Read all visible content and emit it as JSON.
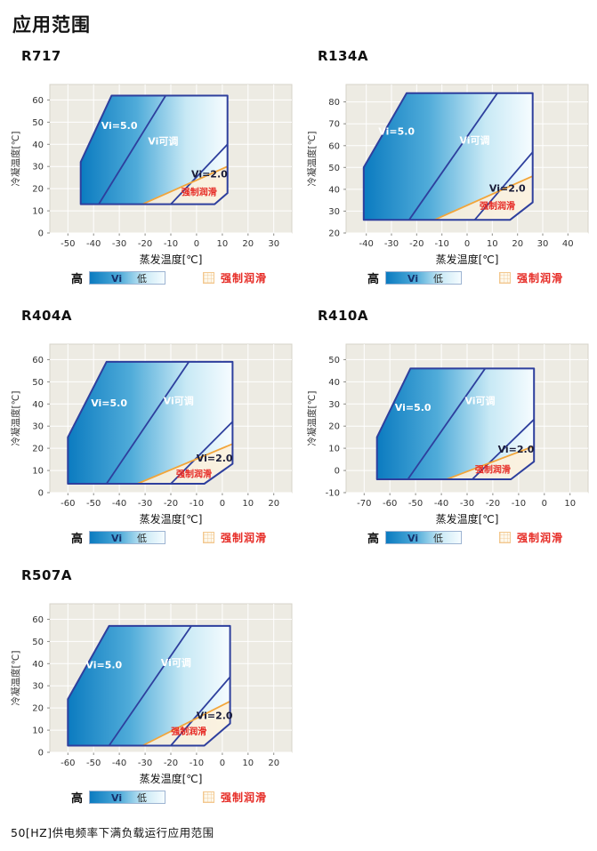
{
  "page": {
    "title": "应用范围",
    "footnote": "50[HZ]供电频率下满负载运行应用范围"
  },
  "legend": {
    "high": "高",
    "vi": "Vi",
    "low": "低",
    "forced_lube": "强制润滑"
  },
  "colors": {
    "plot_bg": "#edebe3",
    "plot_border": "#d6d3c8",
    "grid": "#ffffff",
    "navy": "#2e3f9d",
    "grad_start": "#0b7bc0",
    "grad_mid": "#4fabd9",
    "grad_light": "#c8e9f5",
    "grad_end": "#f6fcff",
    "orange": "#f2a53a",
    "lube_fill": "#fcf1dd",
    "red": "#e62a24",
    "label_dark": "#1a1c38",
    "axis_text": "#333333"
  },
  "chart_data": [
    {
      "type": "area",
      "title": "R717",
      "xlabel": "蒸发温度[℃]",
      "ylabel": "冷凝温度[℃]",
      "xticks": [
        -50,
        -40,
        -30,
        -20,
        -10,
        0,
        10,
        20,
        30
      ],
      "yticks": [
        0,
        10,
        20,
        30,
        40,
        50,
        60
      ],
      "xlim": [
        -57,
        37
      ],
      "ylim": [
        0,
        67
      ],
      "envelope": [
        [
          -45,
          13
        ],
        [
          -45,
          32
        ],
        [
          -33,
          62
        ],
        [
          12,
          62
        ],
        [
          12,
          18
        ],
        [
          7,
          13
        ]
      ],
      "vi5_line": [
        [
          -38,
          13
        ],
        [
          -12,
          62
        ]
      ],
      "vi2_line": [
        [
          -10,
          13
        ],
        [
          12,
          40
        ]
      ],
      "forced_lube_line": [
        [
          -21,
          13
        ],
        [
          12,
          30
        ]
      ],
      "forced_lube_region": [
        [
          -21,
          13
        ],
        [
          12,
          30
        ],
        [
          12,
          18
        ],
        [
          7,
          13
        ]
      ],
      "labels": [
        {
          "text": "Vi=5.0",
          "x": -30,
          "y": 47,
          "style": "white"
        },
        {
          "text": "Vi可调",
          "x": -13,
          "y": 40,
          "style": "white"
        },
        {
          "text": "Vi=2.0",
          "x": 5,
          "y": 25,
          "style": "dark"
        },
        {
          "text": "强制润滑",
          "x": 1,
          "y": 17,
          "style": "red"
        }
      ]
    },
    {
      "type": "area",
      "title": "R134A",
      "xlabel": "蒸发温度[℃]",
      "ylabel": "冷凝温度[℃]",
      "xticks": [
        -40,
        -30,
        -20,
        -10,
        0,
        10,
        20,
        30,
        40
      ],
      "yticks": [
        20,
        30,
        40,
        50,
        60,
        70,
        80
      ],
      "xlim": [
        -48,
        48
      ],
      "ylim": [
        20,
        88
      ],
      "envelope": [
        [
          -41,
          26
        ],
        [
          -41,
          50
        ],
        [
          -24,
          84
        ],
        [
          26,
          84
        ],
        [
          26,
          34
        ],
        [
          17,
          26
        ]
      ],
      "vi5_line": [
        [
          -23,
          26
        ],
        [
          12,
          84
        ]
      ],
      "vi2_line": [
        [
          3,
          26
        ],
        [
          26,
          57
        ]
      ],
      "forced_lube_line": [
        [
          -13,
          26
        ],
        [
          26,
          46
        ]
      ],
      "forced_lube_region": [
        [
          -13,
          26
        ],
        [
          26,
          46
        ],
        [
          26,
          34
        ],
        [
          17,
          26
        ]
      ],
      "labels": [
        {
          "text": "Vi=5.0",
          "x": -28,
          "y": 65,
          "style": "white"
        },
        {
          "text": "Vi可调",
          "x": 3,
          "y": 61,
          "style": "white"
        },
        {
          "text": "Vi=2.0",
          "x": 16,
          "y": 39,
          "style": "dark"
        },
        {
          "text": "强制润滑",
          "x": 12,
          "y": 31,
          "style": "red"
        }
      ]
    },
    {
      "type": "area",
      "title": "R404A",
      "xlabel": "蒸发温度[℃]",
      "ylabel": "冷凝温度[℃]",
      "xticks": [
        -60,
        -50,
        -40,
        -30,
        -20,
        -10,
        0,
        10,
        20
      ],
      "yticks": [
        0,
        10,
        20,
        30,
        40,
        50,
        60
      ],
      "xlim": [
        -67,
        27
      ],
      "ylim": [
        0,
        67
      ],
      "envelope": [
        [
          -60,
          4
        ],
        [
          -60,
          25
        ],
        [
          -45,
          59
        ],
        [
          4,
          59
        ],
        [
          4,
          13
        ],
        [
          -7,
          4
        ]
      ],
      "vi5_line": [
        [
          -45,
          4
        ],
        [
          -13,
          59
        ]
      ],
      "vi2_line": [
        [
          -20,
          4
        ],
        [
          4,
          32
        ]
      ],
      "forced_lube_line": [
        [
          -33,
          4
        ],
        [
          4,
          22
        ]
      ],
      "forced_lube_region": [
        [
          -33,
          4
        ],
        [
          4,
          22
        ],
        [
          4,
          13
        ],
        [
          -7,
          4
        ]
      ],
      "labels": [
        {
          "text": "Vi=5.0",
          "x": -44,
          "y": 39,
          "style": "white"
        },
        {
          "text": "Vi可调",
          "x": -17,
          "y": 40,
          "style": "white"
        },
        {
          "text": "Vi=2.0",
          "x": -3,
          "y": 14,
          "style": "dark"
        },
        {
          "text": "强制润滑",
          "x": -11,
          "y": 7,
          "style": "red"
        }
      ]
    },
    {
      "type": "area",
      "title": "R410A",
      "xlabel": "蒸发温度[℃]",
      "ylabel": "冷凝温度[℃]",
      "xticks": [
        -70,
        -60,
        -50,
        -40,
        -30,
        -20,
        -10,
        0,
        10
      ],
      "yticks": [
        -10,
        0,
        10,
        20,
        30,
        40,
        50
      ],
      "xlim": [
        -77,
        17
      ],
      "ylim": [
        -10,
        57
      ],
      "envelope": [
        [
          -65,
          -4
        ],
        [
          -65,
          15
        ],
        [
          -52,
          46
        ],
        [
          -4,
          46
        ],
        [
          -4,
          4
        ],
        [
          -13,
          -4
        ]
      ],
      "vi5_line": [
        [
          -53,
          -4
        ],
        [
          -23,
          46
        ]
      ],
      "vi2_line": [
        [
          -28,
          -4
        ],
        [
          -4,
          23
        ]
      ],
      "forced_lube_line": [
        [
          -38,
          -4
        ],
        [
          -4,
          11
        ]
      ],
      "forced_lube_region": [
        [
          -38,
          -4
        ],
        [
          -4,
          11
        ],
        [
          -4,
          4
        ],
        [
          -13,
          -4
        ]
      ],
      "labels": [
        {
          "text": "Vi=5.0",
          "x": -51,
          "y": 27,
          "style": "white"
        },
        {
          "text": "Vi可调",
          "x": -25,
          "y": 30,
          "style": "white"
        },
        {
          "text": "Vi=2.0",
          "x": -11,
          "y": 8,
          "style": "dark"
        },
        {
          "text": "强制润滑",
          "x": -20,
          "y": -1,
          "style": "red"
        }
      ]
    },
    {
      "type": "area",
      "title": "R507A",
      "xlabel": "蒸发温度[℃]",
      "ylabel": "冷凝温度[℃]",
      "xticks": [
        -60,
        -50,
        -40,
        -30,
        -20,
        -10,
        0,
        10,
        20
      ],
      "yticks": [
        0,
        10,
        20,
        30,
        40,
        50,
        60
      ],
      "xlim": [
        -67,
        27
      ],
      "ylim": [
        0,
        67
      ],
      "envelope": [
        [
          -60,
          3
        ],
        [
          -60,
          24
        ],
        [
          -44,
          57
        ],
        [
          3,
          57
        ],
        [
          3,
          13
        ],
        [
          -7,
          3
        ]
      ],
      "vi5_line": [
        [
          -44,
          3
        ],
        [
          -12,
          57
        ]
      ],
      "vi2_line": [
        [
          -20,
          3
        ],
        [
          3,
          34
        ]
      ],
      "forced_lube_line": [
        [
          -31,
          3
        ],
        [
          3,
          23
        ]
      ],
      "forced_lube_region": [
        [
          -31,
          3
        ],
        [
          3,
          23
        ],
        [
          3,
          13
        ],
        [
          -7,
          3
        ]
      ],
      "labels": [
        {
          "text": "Vi=5.0",
          "x": -46,
          "y": 38,
          "style": "white"
        },
        {
          "text": "Vi可调",
          "x": -18,
          "y": 39,
          "style": "white"
        },
        {
          "text": "Vi=2.0",
          "x": -3,
          "y": 15,
          "style": "dark"
        },
        {
          "text": "强制润滑",
          "x": -13,
          "y": 8,
          "style": "red"
        }
      ]
    }
  ]
}
